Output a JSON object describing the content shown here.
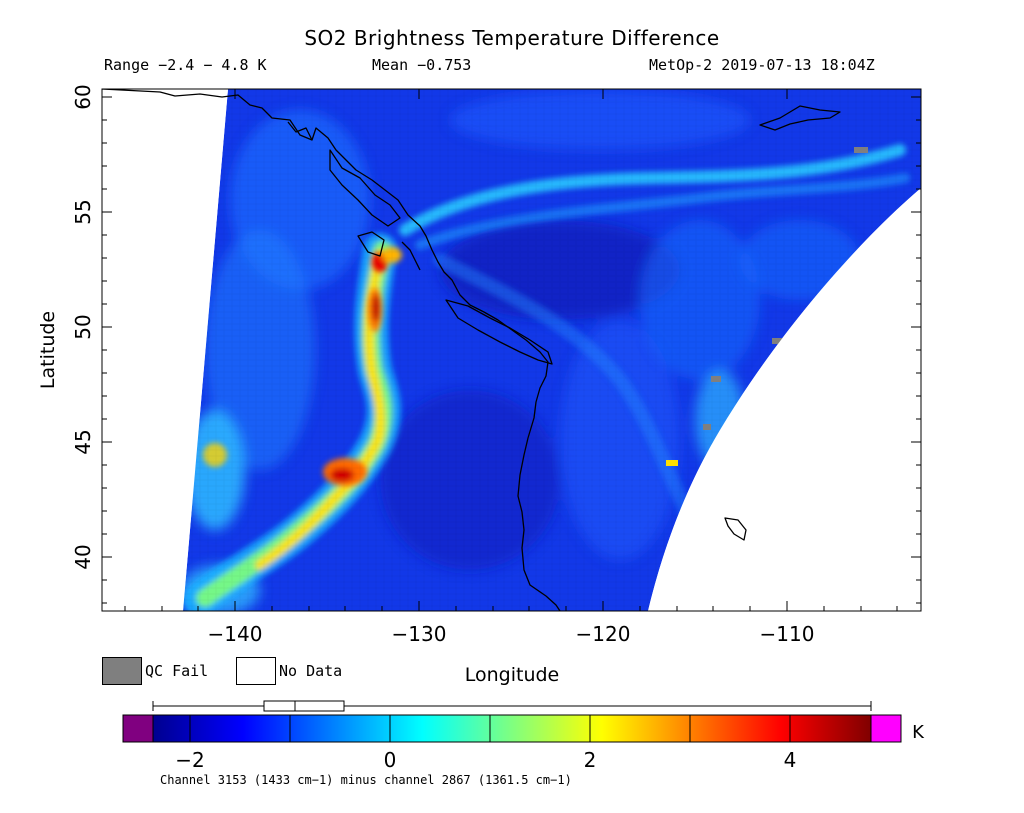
{
  "header": {
    "title": "SO2 Brightness Temperature Difference",
    "range_text": "Range −2.4 − 4.8 K",
    "mean_text": "Mean −0.753",
    "satellite_text": "MetOp-2 2019-07-13 18:04Z"
  },
  "map": {
    "xlabel": "Longitude",
    "ylabel": "Latitude",
    "lon_ticks": [
      "−140",
      "−130",
      "−120",
      "−110"
    ],
    "lat_ticks": [
      "60",
      "55",
      "50",
      "45",
      "40"
    ]
  },
  "legend": {
    "qc_fail_label": "QC Fail",
    "no_data_label": "No Data",
    "qc_fail_color": "#7f7f7f",
    "no_data_color": "#ffffff"
  },
  "colorbar": {
    "tick_labels": [
      "−2",
      "0",
      "2",
      "4"
    ],
    "unit": "K",
    "under_color": "#800080",
    "over_color": "#ff00ff",
    "min_value": -2.4,
    "max_value": 4.8,
    "boxplot": {
      "whisker_low": -2.4,
      "q1": -1.3,
      "median": -0.95,
      "q3": -0.45,
      "whisker_high": 4.8
    }
  },
  "footnote": "Channel 3153 (1433 cm−1) minus channel 2867 (1361.5 cm−1)"
}
